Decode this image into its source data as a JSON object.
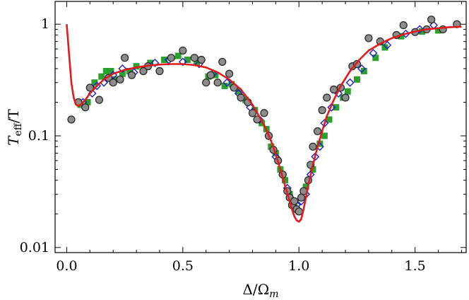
{
  "chart_data": {
    "type": "scatter",
    "title": "",
    "xlabel": "Δ/Ω",
    "xlabel_sub": "m",
    "ylabel_main": "T",
    "ylabel_sub": "eff",
    "ylabel_rest": "/T",
    "xlim": [
      -0.05,
      1.72
    ],
    "ylim": [
      0.009,
      1.6
    ],
    "yscale": "log",
    "x_ticks": [
      {
        "value": 0.0,
        "label": "0.0"
      },
      {
        "value": 0.5,
        "label": "0.5"
      },
      {
        "value": 1.0,
        "label": "1.0"
      },
      {
        "value": 1.5,
        "label": "1.5"
      }
    ],
    "y_ticks": [
      {
        "value": 0.01,
        "label": "0.01"
      },
      {
        "value": 0.1,
        "label": "0.1"
      },
      {
        "value": 1,
        "label": "1"
      }
    ],
    "colors": {
      "fit": "#e31a1c",
      "circle_fill": "#8c8c8c",
      "square": "#2ca02c",
      "diamond": "#1f1fd0"
    },
    "fit_curve": {
      "name": "theory fit",
      "x": [
        0.0,
        0.01,
        0.02,
        0.03,
        0.04,
        0.05,
        0.06,
        0.08,
        0.1,
        0.13,
        0.16,
        0.2,
        0.25,
        0.3,
        0.35,
        0.4,
        0.45,
        0.5,
        0.55,
        0.6,
        0.65,
        0.7,
        0.75,
        0.8,
        0.85,
        0.88,
        0.9,
        0.92,
        0.94,
        0.96,
        0.97,
        0.98,
        0.99,
        1.0,
        1.01,
        1.02,
        1.03,
        1.04,
        1.06,
        1.08,
        1.1,
        1.12,
        1.15,
        1.18,
        1.22,
        1.26,
        1.3,
        1.35,
        1.4,
        1.45,
        1.5,
        1.55,
        1.6,
        1.65,
        1.7
      ],
      "y": [
        1.0,
        0.55,
        0.3,
        0.22,
        0.19,
        0.185,
        0.19,
        0.21,
        0.24,
        0.28,
        0.32,
        0.36,
        0.39,
        0.41,
        0.425,
        0.435,
        0.44,
        0.44,
        0.43,
        0.41,
        0.37,
        0.32,
        0.26,
        0.19,
        0.125,
        0.09,
        0.068,
        0.05,
        0.036,
        0.026,
        0.022,
        0.019,
        0.0175,
        0.017,
        0.018,
        0.022,
        0.028,
        0.036,
        0.055,
        0.08,
        0.11,
        0.15,
        0.21,
        0.28,
        0.38,
        0.48,
        0.58,
        0.67,
        0.75,
        0.81,
        0.86,
        0.9,
        0.92,
        0.94,
        0.95
      ]
    },
    "series": [
      {
        "name": "circles",
        "marker": "circle",
        "x": [
          0.02,
          0.05,
          0.08,
          0.1,
          0.14,
          0.18,
          0.2,
          0.23,
          0.25,
          0.28,
          0.33,
          0.35,
          0.4,
          0.45,
          0.5,
          0.55,
          0.58,
          0.6,
          0.62,
          0.65,
          0.67,
          0.7,
          0.72,
          0.75,
          0.78,
          0.8,
          0.82,
          0.85,
          0.87,
          0.89,
          0.91,
          0.93,
          0.95,
          0.96,
          0.97,
          0.98,
          0.99,
          1.0,
          1.01,
          1.02,
          1.04,
          1.05,
          1.06,
          1.08,
          1.1,
          1.12,
          1.15,
          1.18,
          1.2,
          1.23,
          1.25,
          1.3,
          1.35,
          1.42,
          1.45,
          1.5,
          1.55,
          1.57,
          1.62,
          1.68
        ],
        "y": [
          0.14,
          0.2,
          0.18,
          0.27,
          0.21,
          0.33,
          0.3,
          0.32,
          0.5,
          0.35,
          0.38,
          0.42,
          0.38,
          0.5,
          0.58,
          0.5,
          0.48,
          0.3,
          0.35,
          0.3,
          0.46,
          0.36,
          0.27,
          0.22,
          0.2,
          0.16,
          0.14,
          0.16,
          0.1,
          0.075,
          0.06,
          0.045,
          0.032,
          0.028,
          0.024,
          0.026,
          0.022,
          0.021,
          0.028,
          0.032,
          0.04,
          0.055,
          0.08,
          0.11,
          0.17,
          0.22,
          0.26,
          0.27,
          0.22,
          0.42,
          0.44,
          0.75,
          0.7,
          0.8,
          0.98,
          0.85,
          0.9,
          1.1,
          0.9,
          1.0
        ]
      },
      {
        "name": "squares",
        "marker": "square",
        "x": [
          0.06,
          0.09,
          0.12,
          0.15,
          0.17,
          0.19,
          0.21,
          0.24,
          0.27,
          0.3,
          0.36,
          0.42,
          0.48,
          0.52,
          0.56,
          0.61,
          0.64,
          0.68,
          0.71,
          0.74,
          0.77,
          0.81,
          0.84,
          0.86,
          0.88,
          0.9,
          0.92,
          0.94,
          0.96,
          0.98,
          1.03,
          1.06,
          1.09,
          1.11,
          1.13,
          1.16,
          1.19,
          1.21,
          1.25,
          1.28,
          1.33,
          1.37,
          1.44,
          1.53,
          1.6
        ],
        "y": [
          0.19,
          0.2,
          0.3,
          0.34,
          0.38,
          0.38,
          0.32,
          0.36,
          0.38,
          0.42,
          0.45,
          0.48,
          0.52,
          0.48,
          0.45,
          0.34,
          0.35,
          0.28,
          0.29,
          0.25,
          0.21,
          0.17,
          0.13,
          0.115,
          0.08,
          0.07,
          0.05,
          0.04,
          0.03,
          0.025,
          0.035,
          0.05,
          0.085,
          0.1,
          0.14,
          0.18,
          0.22,
          0.25,
          0.32,
          0.38,
          0.5,
          0.62,
          0.78,
          0.86,
          0.88
        ]
      },
      {
        "name": "diamonds",
        "marker": "diamond",
        "x": [
          0.07,
          0.11,
          0.13,
          0.16,
          0.2,
          0.24,
          0.29,
          0.38,
          0.44,
          0.5,
          0.57,
          0.63,
          0.69,
          0.74,
          0.79,
          0.83,
          0.87,
          0.9,
          0.93,
          0.95,
          0.97,
          0.99,
          1.01,
          1.03,
          1.05,
          1.07,
          1.09,
          1.11,
          1.14,
          1.17,
          1.22,
          1.27,
          1.32,
          1.38,
          1.46,
          1.52,
          1.58
        ],
        "y": [
          0.2,
          0.24,
          0.28,
          0.3,
          0.35,
          0.4,
          0.37,
          0.45,
          0.48,
          0.46,
          0.44,
          0.36,
          0.3,
          0.24,
          0.18,
          0.14,
          0.1,
          0.065,
          0.045,
          0.034,
          0.027,
          0.024,
          0.026,
          0.03,
          0.045,
          0.065,
          0.08,
          0.13,
          0.18,
          0.24,
          0.3,
          0.4,
          0.55,
          0.65,
          0.82,
          0.9,
          0.98
        ]
      }
    ]
  }
}
